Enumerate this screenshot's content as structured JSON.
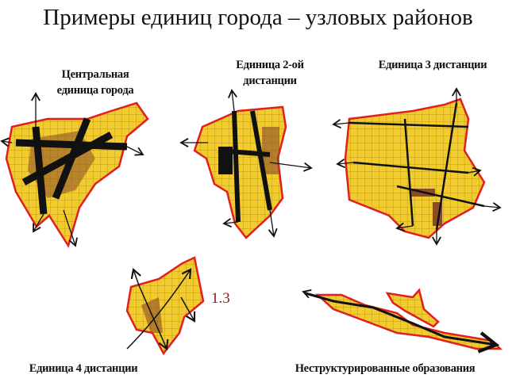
{
  "title": "Примеры единиц города – узловых районов",
  "maps": [
    {
      "label_line1": "Центральная",
      "label_line2": "единица города"
    },
    {
      "label_line1": "Единица 2-ой",
      "label_line2": "дистанции"
    },
    {
      "label": "Единица 3 дистанции"
    },
    {
      "label": "Единица 4 дистанции",
      "annotation": "1.3"
    },
    {
      "label": "Неструктурированные образования"
    }
  ],
  "colors": {
    "fill": "#f2cc2e",
    "outline": "#e02020",
    "road": "#111111",
    "core": "#8b4a2a",
    "annotation": "#8b1a1a"
  }
}
